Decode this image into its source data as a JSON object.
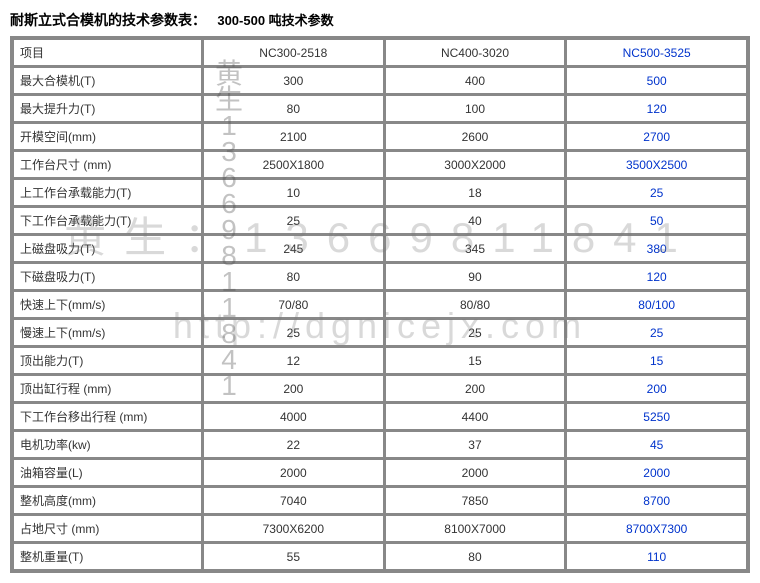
{
  "title": {
    "main": "耐斯立式合模机的技术参数表：",
    "sub": "300-500 吨技术参数"
  },
  "columns": {
    "label_header": "项目",
    "c1": "NC300-2518",
    "c2": "NC400-3020",
    "c3": "NC500-3525"
  },
  "rows": [
    {
      "label": "最大合模机(T)",
      "c1": "300",
      "c2": "400",
      "c3": "500"
    },
    {
      "label": "最大提升力(T)",
      "c1": "80",
      "c2": "100",
      "c3": "120"
    },
    {
      "label": "开模空间(mm)",
      "c1": "2100",
      "c2": "2600",
      "c3": "2700"
    },
    {
      "label": "工作台尺寸 (mm)",
      "c1": "2500X1800",
      "c2": "3000X2000",
      "c3": "3500X2500"
    },
    {
      "label": "上工作台承载能力(T)",
      "c1": "10",
      "c2": "18",
      "c3": "25"
    },
    {
      "label": "下工作台承载能力(T)",
      "c1": "25",
      "c2": "40",
      "c3": "50"
    },
    {
      "label": "上磁盘吸力(T)",
      "c1": "245",
      "c2": "345",
      "c3": "380"
    },
    {
      "label": "下磁盘吸力(T)",
      "c1": "80",
      "c2": "90",
      "c3": "120"
    },
    {
      "label": "快速上下(mm/s)",
      "c1": "70/80",
      "c2": "80/80",
      "c3": "80/100"
    },
    {
      "label": "慢速上下(mm/s)",
      "c1": "25",
      "c2": "25",
      "c3": "25"
    },
    {
      "label": "顶出能力(T)",
      "c1": "12",
      "c2": "15",
      "c3": "15"
    },
    {
      "label": "顶出缸行程 (mm)",
      "c1": "200",
      "c2": "200",
      "c3": "200"
    },
    {
      "label": "下工作台移出行程 (mm)",
      "c1": "4000",
      "c2": "4400",
      "c3": "5250"
    },
    {
      "label": "电机功率(kw)",
      "c1": "22",
      "c2": "37",
      "c3": "45"
    },
    {
      "label": "油箱容量(L)",
      "c1": "2000",
      "c2": "2000",
      "c3": "2000"
    },
    {
      "label": "整机高度(mm)",
      "c1": "7040",
      "c2": "7850",
      "c3": "8700"
    },
    {
      "label": "占地尺寸 (mm)",
      "c1": "7300X6200",
      "c2": "8100X7000",
      "c3": "8700X7300"
    },
    {
      "label": "整机重量(T)",
      "c1": "55",
      "c2": "80",
      "c3": "110"
    }
  ],
  "watermark": {
    "phone": "黄生：13669811841",
    "url": "http://dgnicejx.com",
    "vertical": "黄生13669811841"
  },
  "style": {
    "col3_color": "#0033cc",
    "border_color": "#888888",
    "background_color": "#ffffff",
    "font_size_body": 12,
    "font_size_title": 14,
    "watermark_color": "rgba(120,120,120,0.28)"
  }
}
